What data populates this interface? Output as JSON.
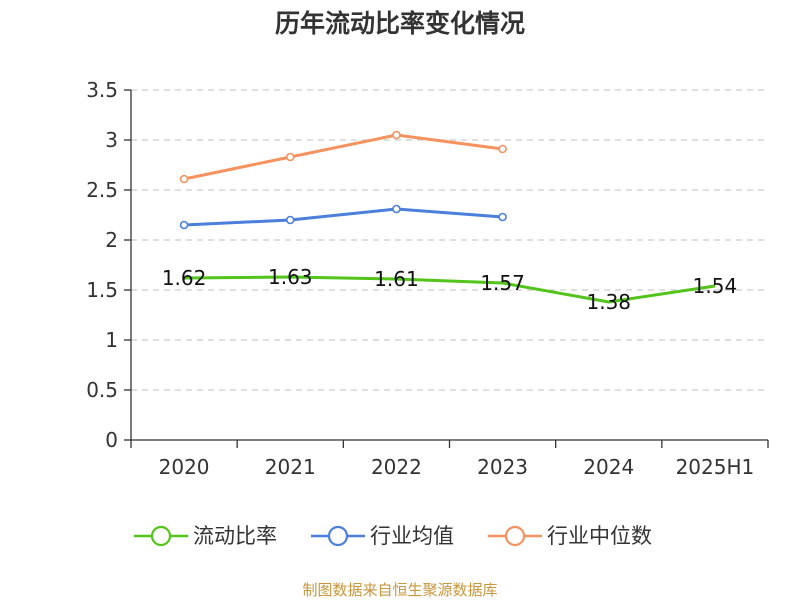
{
  "title": "历年流动比率变化情况",
  "source": "制图数据来自恒生聚源数据库",
  "legend": [
    {
      "label": "流动比率",
      "color": "#52c41a"
    },
    {
      "label": "行业均值",
      "color": "#4a7fdc"
    },
    {
      "label": "行业中位数",
      "color": "#f5925e"
    }
  ],
  "chart_data": {
    "type": "line",
    "title": "历年流动比率变化情况",
    "categories": [
      "2020",
      "2021",
      "2022",
      "2023",
      "2024",
      "2025H1"
    ],
    "ylim": [
      0,
      3.5
    ],
    "yticks": [
      "0",
      "0.5",
      "1",
      "1.5",
      "2",
      "2.5",
      "3",
      "3.5"
    ],
    "grid": true,
    "legend_position": "bottom",
    "series": [
      {
        "name": "流动比率",
        "color": "#52c41a",
        "values": [
          1.62,
          1.63,
          1.61,
          1.57,
          1.38,
          1.54
        ],
        "labels": [
          "1.62",
          "1.63",
          "1.61",
          "1.57",
          "1.38",
          "1.54"
        ],
        "show_labels": true,
        "markers": false
      },
      {
        "name": "行业均值",
        "color": "#4a7fdc",
        "values": [
          2.15,
          2.2,
          2.31,
          2.23,
          null,
          null
        ],
        "markers": true
      },
      {
        "name": "行业中位数",
        "color": "#f5925e",
        "values": [
          2.61,
          2.83,
          3.05,
          2.91,
          null,
          null
        ],
        "markers": true
      }
    ]
  }
}
